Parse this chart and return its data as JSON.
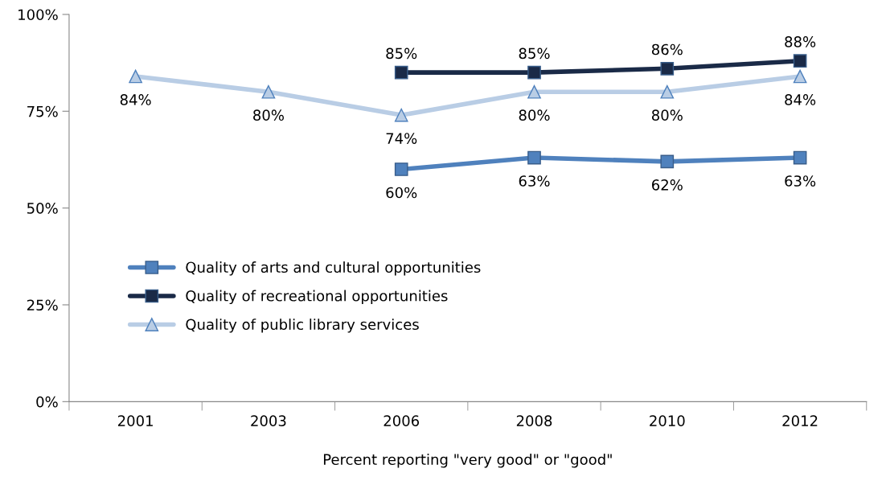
{
  "chart_data": {
    "type": "line",
    "xlabel": "Percent reporting \"very good\" or \"good\"",
    "categories": [
      "2001",
      "2003",
      "2006",
      "2008",
      "2010",
      "2012"
    ],
    "series": [
      {
        "name": "Quality of arts and cultural opportunities",
        "color": "#4f81bd",
        "marker": "square",
        "values": [
          null,
          null,
          60,
          63,
          62,
          63
        ],
        "value_labels": [
          null,
          null,
          "60%",
          "63%",
          "62%",
          "63%"
        ]
      },
      {
        "name": "Quality of recreational opportunities",
        "color": "#1a2a47",
        "marker": "square",
        "values": [
          null,
          null,
          85,
          85,
          86,
          88
        ],
        "value_labels": [
          null,
          null,
          "85%",
          "85%",
          "86%",
          "88%"
        ]
      },
      {
        "name": "Quality of public library services",
        "color": "#b9cde5",
        "marker": "triangle",
        "values": [
          84,
          80,
          74,
          80,
          80,
          84
        ],
        "value_labels": [
          "84%",
          "80%",
          "74%",
          "80%",
          "80%",
          "84%"
        ]
      }
    ],
    "ylim": [
      0,
      100
    ],
    "yticks": [
      {
        "value": 0,
        "label": "0%"
      },
      {
        "value": 25,
        "label": "25%"
      },
      {
        "value": 50,
        "label": "50%"
      },
      {
        "value": 75,
        "label": "75%"
      },
      {
        "value": 100,
        "label": "100%"
      }
    ],
    "grid": false,
    "legend": "center left",
    "line_style": "solid"
  }
}
